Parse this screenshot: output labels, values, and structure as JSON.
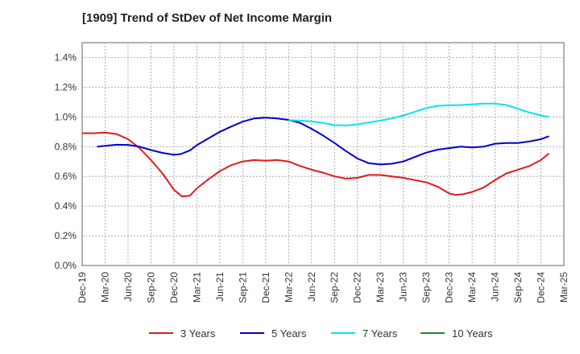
{
  "chart_data": {
    "type": "line",
    "title": "[1909]  Trend of StDev of Net Income Margin",
    "x_labels": [
      "Dec-19",
      "Mar-20",
      "Jun-20",
      "Sep-20",
      "Dec-20",
      "Mar-21",
      "Jun-21",
      "Sep-21",
      "Dec-21",
      "Mar-22",
      "Jun-22",
      "Sep-22",
      "Dec-22",
      "Mar-23",
      "Jun-23",
      "Sep-23",
      "Dec-23",
      "Mar-24",
      "Jun-24",
      "Sep-24",
      "Dec-24",
      "Mar-25"
    ],
    "y_ticks": [
      "0.0%",
      "0.2%",
      "0.4%",
      "0.6%",
      "0.8%",
      "1.0%",
      "1.2%",
      "1.4%"
    ],
    "ylim": [
      0,
      1.5
    ],
    "grid": true,
    "legend_position": "bottom",
    "series": [
      {
        "name": "3 Years",
        "color": "#e41a1c",
        "points": [
          [
            0,
            0.89
          ],
          [
            0.5,
            0.89
          ],
          [
            1,
            0.895
          ],
          [
            1.5,
            0.885
          ],
          [
            2,
            0.85
          ],
          [
            2.5,
            0.79
          ],
          [
            3,
            0.71
          ],
          [
            3.5,
            0.62
          ],
          [
            4,
            0.51
          ],
          [
            4.35,
            0.465
          ],
          [
            4.7,
            0.47
          ],
          [
            5,
            0.52
          ],
          [
            5.5,
            0.58
          ],
          [
            6,
            0.635
          ],
          [
            6.5,
            0.675
          ],
          [
            7,
            0.7
          ],
          [
            7.5,
            0.71
          ],
          [
            8,
            0.705
          ],
          [
            8.5,
            0.71
          ],
          [
            9,
            0.7
          ],
          [
            9.5,
            0.67
          ],
          [
            10,
            0.645
          ],
          [
            10.5,
            0.625
          ],
          [
            11,
            0.6
          ],
          [
            11.5,
            0.585
          ],
          [
            12,
            0.59
          ],
          [
            12.5,
            0.61
          ],
          [
            13,
            0.61
          ],
          [
            13.5,
            0.6
          ],
          [
            14,
            0.59
          ],
          [
            14.5,
            0.575
          ],
          [
            15,
            0.56
          ],
          [
            15.5,
            0.53
          ],
          [
            16,
            0.485
          ],
          [
            16.3,
            0.475
          ],
          [
            16.6,
            0.48
          ],
          [
            17,
            0.495
          ],
          [
            17.5,
            0.525
          ],
          [
            18,
            0.575
          ],
          [
            18.5,
            0.62
          ],
          [
            19,
            0.645
          ],
          [
            19.5,
            0.67
          ],
          [
            20,
            0.71
          ],
          [
            20.35,
            0.755
          ]
        ]
      },
      {
        "name": "5 Years",
        "color": "#0000cd",
        "points": [
          [
            0.65,
            0.8
          ],
          [
            1,
            0.805
          ],
          [
            1.5,
            0.813
          ],
          [
            2,
            0.812
          ],
          [
            2.5,
            0.8
          ],
          [
            3,
            0.777
          ],
          [
            3.5,
            0.758
          ],
          [
            4,
            0.745
          ],
          [
            4.3,
            0.75
          ],
          [
            4.7,
            0.775
          ],
          [
            5,
            0.81
          ],
          [
            5.5,
            0.855
          ],
          [
            6,
            0.9
          ],
          [
            6.5,
            0.935
          ],
          [
            7,
            0.968
          ],
          [
            7.5,
            0.99
          ],
          [
            8,
            0.995
          ],
          [
            8.5,
            0.99
          ],
          [
            9,
            0.98
          ],
          [
            9.5,
            0.96
          ],
          [
            10,
            0.92
          ],
          [
            10.5,
            0.875
          ],
          [
            11,
            0.825
          ],
          [
            11.5,
            0.77
          ],
          [
            12,
            0.72
          ],
          [
            12.5,
            0.688
          ],
          [
            13,
            0.68
          ],
          [
            13.5,
            0.685
          ],
          [
            14,
            0.7
          ],
          [
            14.5,
            0.73
          ],
          [
            15,
            0.76
          ],
          [
            15.5,
            0.78
          ],
          [
            16,
            0.79
          ],
          [
            16.5,
            0.8
          ],
          [
            17,
            0.795
          ],
          [
            17.5,
            0.8
          ],
          [
            18,
            0.82
          ],
          [
            18.5,
            0.825
          ],
          [
            19,
            0.825
          ],
          [
            19.5,
            0.835
          ],
          [
            20,
            0.85
          ],
          [
            20.35,
            0.87
          ]
        ]
      },
      {
        "name": "7 Years",
        "color": "#00e5ee",
        "points": [
          [
            9,
            0.978
          ],
          [
            9.5,
            0.975
          ],
          [
            10,
            0.97
          ],
          [
            10.5,
            0.96
          ],
          [
            11,
            0.945
          ],
          [
            11.5,
            0.942
          ],
          [
            12,
            0.95
          ],
          [
            12.5,
            0.963
          ],
          [
            13,
            0.975
          ],
          [
            13.5,
            0.99
          ],
          [
            14,
            1.01
          ],
          [
            14.5,
            1.035
          ],
          [
            15,
            1.06
          ],
          [
            15.5,
            1.075
          ],
          [
            16,
            1.078
          ],
          [
            16.5,
            1.08
          ],
          [
            17,
            1.085
          ],
          [
            17.5,
            1.09
          ],
          [
            18,
            1.09
          ],
          [
            18.5,
            1.08
          ],
          [
            19,
            1.055
          ],
          [
            19.5,
            1.03
          ],
          [
            20,
            1.01
          ],
          [
            20.35,
            1.0
          ]
        ]
      },
      {
        "name": "10 Years",
        "color": "#228b22",
        "points": []
      }
    ]
  }
}
